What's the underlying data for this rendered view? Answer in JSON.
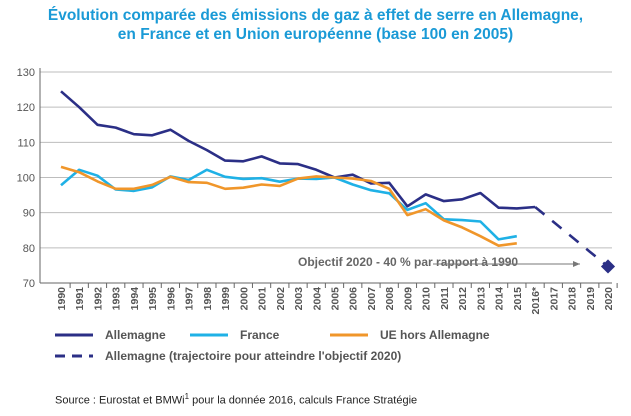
{
  "title_lines": [
    "Évolution comparée des émissions de gaz à effet de serre en Allemagne,",
    "en France et en Union européenne (base 100 en 2005)"
  ],
  "source": {
    "text_before": "Source : Eurostat et BMWi",
    "superscript": "1",
    "text_after": " pour la donnée 2016, calculs France Stratégie"
  },
  "chart_data": {
    "type": "line",
    "title": "Évolution comparée des émissions de gaz à effet de serre en Allemagne, en France et en Union européenne (base 100 en 2005)",
    "categories": [
      "1990",
      "1991",
      "1992",
      "1993",
      "1994",
      "1995",
      "1996",
      "1997",
      "1998",
      "1999",
      "2000",
      "2001",
      "2002",
      "2003",
      "2004",
      "2005",
      "2006",
      "2007",
      "2008",
      "2009",
      "2010",
      "2011",
      "2012",
      "2013",
      "2014",
      "2015",
      "2016*",
      "2017",
      "2018",
      "2019",
      "2020"
    ],
    "ylim": [
      70,
      130
    ],
    "yticks": [
      70,
      80,
      90,
      100,
      110,
      120,
      130
    ],
    "grid": "horizontal",
    "legend_placement": "bottom",
    "series": [
      {
        "name": "Allemagne",
        "color": "#2b2f86",
        "style": "solid",
        "values": [
          124.5,
          120,
          115,
          114.2,
          112.3,
          112,
          113.6,
          110.4,
          107.8,
          104.8,
          104.6,
          106,
          104,
          103.8,
          102.2,
          100,
          100.8,
          98.3,
          98.5,
          91.8,
          95.2,
          93.3,
          93.8,
          95.6,
          91.4,
          91.2,
          91.6,
          null,
          null,
          null,
          null
        ]
      },
      {
        "name": "France",
        "color": "#1fb1e6",
        "style": "solid",
        "values": [
          97.8,
          102.2,
          100.5,
          96.6,
          96.2,
          97.2,
          100.3,
          99.3,
          102.2,
          100.2,
          99.6,
          99.8,
          98.8,
          99.7,
          99.6,
          100,
          98,
          96.4,
          95.5,
          90.8,
          92.7,
          88.1,
          87.9,
          87.5,
          82.4,
          83.3,
          null,
          null,
          null,
          null,
          null
        ]
      },
      {
        "name": "UE hors Allemagne",
        "color": "#f0962a",
        "style": "solid",
        "values": [
          103,
          101.5,
          98.9,
          96.8,
          96.8,
          97.9,
          100.2,
          98.7,
          98.5,
          96.8,
          97.1,
          98,
          97.6,
          99.7,
          100.3,
          100,
          99.7,
          99,
          96.8,
          89.3,
          91,
          87.8,
          85.8,
          83.3,
          80.6,
          81.3,
          null,
          null,
          null,
          null,
          null
        ]
      },
      {
        "name": "Allemagne (trajectoire pour atteindre l'objectif 2020)",
        "color": "#2b2f86",
        "style": "dashed",
        "values": [
          null,
          null,
          null,
          null,
          null,
          null,
          null,
          null,
          null,
          null,
          null,
          null,
          null,
          null,
          null,
          null,
          null,
          null,
          null,
          null,
          null,
          null,
          null,
          null,
          null,
          null,
          91.6,
          87.4,
          83.2,
          78.9,
          74.7
        ]
      }
    ],
    "annotations": [
      {
        "text": "Objectif 2020 - 40 % par rapport à 1990",
        "target": "2020",
        "value": 74.7,
        "marker": "diamond"
      }
    ]
  }
}
